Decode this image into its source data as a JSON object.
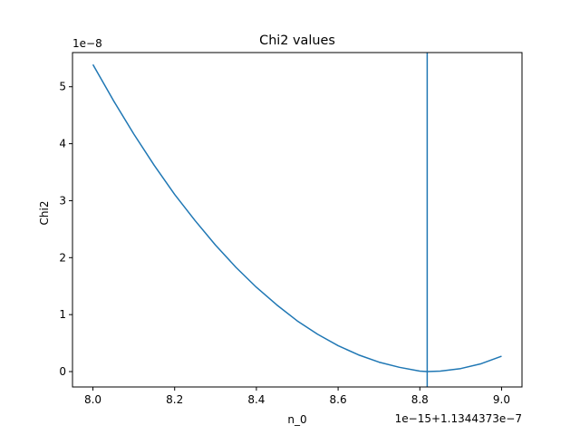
{
  "chart_data": {
    "type": "line",
    "title": "Chi2 values",
    "xlabel": "n_0",
    "ylabel": "Chi2",
    "x_offset_text": "1e−15+1.1344373e−7",
    "y_offset_text": "1e−8",
    "xlim": [
      7.95,
      9.05
    ],
    "ylim": [
      -0.27,
      5.6
    ],
    "x_ticks": [
      8.0,
      8.2,
      8.4,
      8.6,
      8.8,
      9.0
    ],
    "x_tick_labels": [
      "8.0",
      "8.2",
      "8.4",
      "8.6",
      "8.8",
      "9.0"
    ],
    "y_ticks": [
      0,
      1,
      2,
      3,
      4,
      5
    ],
    "y_tick_labels": [
      "0",
      "1",
      "2",
      "3",
      "4",
      "5"
    ],
    "grid": false,
    "series": [
      {
        "color": "#1f77b4",
        "x": [
          8.0,
          8.05,
          8.1,
          8.15,
          8.2,
          8.25,
          8.3,
          8.35,
          8.4,
          8.45,
          8.5,
          8.55,
          8.6,
          8.65,
          8.7,
          8.75,
          8.8,
          8.818,
          8.85,
          8.9,
          8.95,
          9.0
        ],
        "y": [
          5.39,
          4.76,
          4.17,
          3.62,
          3.11,
          2.65,
          2.22,
          1.83,
          1.48,
          1.17,
          0.89,
          0.655,
          0.455,
          0.293,
          0.166,
          0.075,
          0.0086,
          0.0,
          0.0084,
          0.053,
          0.138,
          0.27
        ]
      }
    ],
    "vlines": [
      {
        "x": 8.818,
        "color": "#1f77b4"
      }
    ]
  }
}
